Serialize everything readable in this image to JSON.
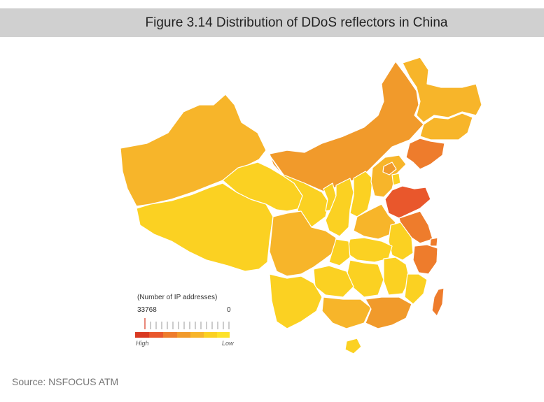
{
  "title": "Figure 3.14 Distribution of DDoS reflectors in China",
  "source": "Source: NSFOCUS ATM",
  "colors": {
    "scale": [
      "#d93a22",
      "#e9572c",
      "#ee7c2c",
      "#f19a2b",
      "#f7b52a",
      "#fbd122",
      "#fde22a"
    ],
    "outline": "#ffffff",
    "title_bar": "#d0d0d0"
  },
  "legend": {
    "caption": "(Number of IP addresses)",
    "max_value": "33768",
    "min_value": "0",
    "high_label": "High",
    "low_label": "Low"
  }
}
